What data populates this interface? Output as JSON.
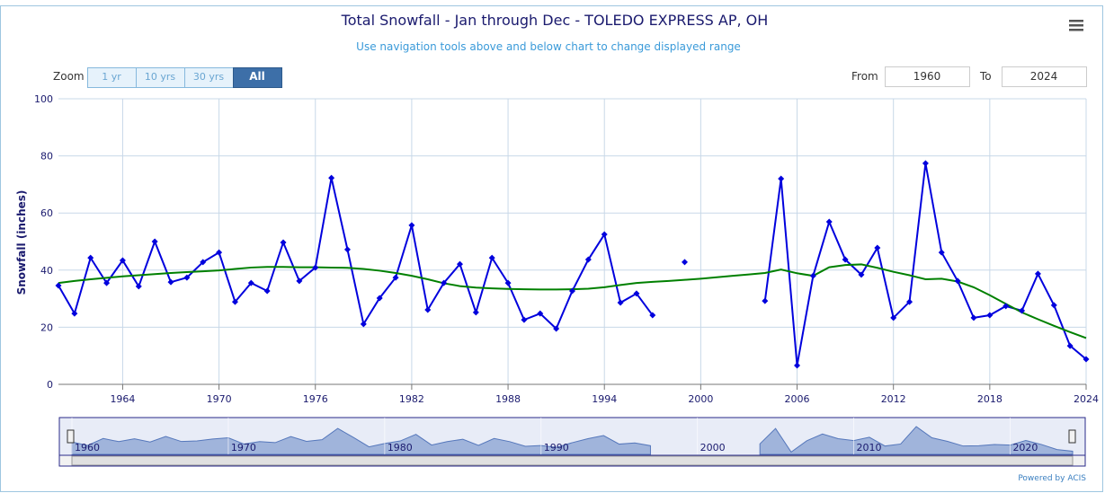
{
  "chart_data": {
    "type": "line",
    "title": "Total Snowfall - Jan through Dec - TOLEDO EXPRESS AP, OH",
    "subtitle": "Use navigation tools above and below chart to change displayed range",
    "ylabel": "Snowfall (inches)",
    "x": [
      1960,
      1961,
      1962,
      1963,
      1964,
      1965,
      1966,
      1967,
      1968,
      1969,
      1970,
      1971,
      1972,
      1973,
      1974,
      1975,
      1976,
      1977,
      1978,
      1979,
      1980,
      1981,
      1982,
      1983,
      1984,
      1985,
      1986,
      1987,
      1988,
      1989,
      1990,
      1991,
      1992,
      1993,
      1994,
      1995,
      1996,
      1997,
      1998,
      1999,
      2000,
      2001,
      2002,
      2003,
      2004,
      2005,
      2006,
      2007,
      2008,
      2009,
      2010,
      2011,
      2012,
      2013,
      2014,
      2015,
      2016,
      2017,
      2018,
      2019,
      2020,
      2021,
      2022,
      2023,
      2024
    ],
    "series": [
      {
        "color": "#0000dd",
        "values": [
          34.6,
          24.8,
          44.3,
          35.5,
          43.4,
          34.3,
          50.0,
          35.8,
          37.4,
          42.8,
          46.2,
          28.9,
          35.5,
          32.7,
          49.7,
          36.2,
          40.9,
          72.3,
          47.2,
          21.1,
          30.2,
          37.4,
          55.7,
          26.1,
          35.5,
          42.1,
          25.2,
          44.3,
          35.5,
          22.6,
          24.8,
          19.5,
          32.7,
          43.7,
          52.5,
          28.6,
          31.8,
          24.2,
          null,
          42.8,
          null,
          null,
          null,
          null,
          29.2,
          72.0,
          6.6,
          38.0,
          56.9,
          43.7,
          38.4,
          47.8,
          23.3,
          28.9,
          77.4,
          46.2,
          36.2,
          23.3,
          24.2,
          27.4,
          25.8,
          38.7,
          27.7,
          13.5,
          8.8
        ]
      },
      {
        "color": "#008000",
        "values": [
          35.5,
          36.2,
          36.8,
          37.3,
          37.8,
          38.2,
          38.6,
          39.0,
          39.3,
          39.6,
          39.9,
          40.4,
          40.9,
          41.1,
          41.1,
          41.0,
          41.0,
          40.9,
          40.8,
          40.4,
          39.8,
          39.0,
          38.0,
          36.8,
          35.4,
          34.4,
          33.9,
          33.6,
          33.4,
          33.3,
          33.2,
          33.2,
          33.3,
          33.5,
          34.0,
          34.8,
          35.5,
          35.9,
          36.2,
          36.6,
          37.0,
          37.5,
          38.0,
          38.5,
          39.0,
          40.2,
          38.9,
          38.0,
          41.0,
          41.8,
          42.0,
          40.8,
          39.4,
          38.2,
          36.8,
          37.0,
          36.0,
          34.0,
          31.2,
          28.2,
          25.2,
          22.8,
          20.5,
          18.3,
          16.2
        ]
      }
    ],
    "xlim": [
      1960,
      2024
    ],
    "xticks": [
      1964,
      1970,
      1976,
      1982,
      1988,
      1994,
      2000,
      2006,
      2012,
      2018,
      2024
    ],
    "ylim": [
      0,
      100
    ],
    "yticks": [
      0,
      20,
      40,
      60,
      80,
      100
    ],
    "grid": true,
    "navigator_ticks": [
      1960,
      1970,
      1980,
      1990,
      2000,
      2010,
      2020
    ]
  },
  "ui": {
    "zoom_label": "Zoom",
    "zoom_buttons": [
      "1 yr",
      "10 yrs",
      "30 yrs",
      "All"
    ],
    "from_label": "From",
    "from_value": "1960",
    "to_label": "To",
    "to_value": "2024",
    "credits": "Powered by ACIS"
  }
}
